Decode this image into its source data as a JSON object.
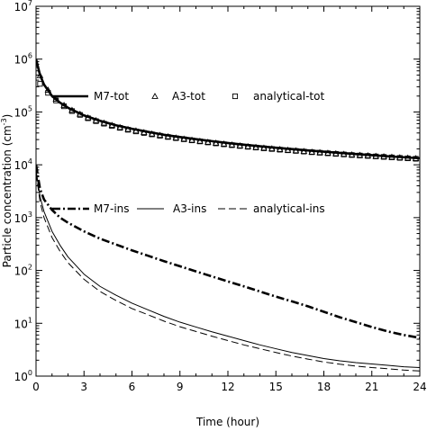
{
  "chart_data": {
    "type": "line",
    "title": "",
    "xlabel": "Time (hour)",
    "ylabel": "Particle concentration (cm",
    "ylabel_sup": "-3",
    "ylabel_tail": ")",
    "xlim": [
      0,
      24
    ],
    "ylim": [
      1,
      10000000
    ],
    "yscale": "log",
    "grid": false,
    "legend_placement": "inside plot, two rows",
    "x_ticks": [
      {
        "value": 0,
        "label": "0"
      },
      {
        "value": 3,
        "label": "3"
      },
      {
        "value": 6,
        "label": "6"
      },
      {
        "value": 9,
        "label": "9"
      },
      {
        "value": 12,
        "label": "12"
      },
      {
        "value": 15,
        "label": "15"
      },
      {
        "value": 18,
        "label": "18"
      },
      {
        "value": 21,
        "label": "21"
      },
      {
        "value": 24,
        "label": "24"
      }
    ],
    "y_ticks": [
      {
        "value": 1,
        "label": "10",
        "exp": "0"
      },
      {
        "value": 10,
        "label": "10",
        "exp": "1"
      },
      {
        "value": 100,
        "label": "10",
        "exp": "2"
      },
      {
        "value": 1000,
        "label": "10",
        "exp": "3"
      },
      {
        "value": 10000,
        "label": "10",
        "exp": "4"
      },
      {
        "value": 100000,
        "label": "10",
        "exp": "5"
      },
      {
        "value": 1000000,
        "label": "10",
        "exp": "6"
      },
      {
        "value": 10000000,
        "label": "10",
        "exp": "7"
      }
    ],
    "series": [
      {
        "name": "M7-tot",
        "style": "thick-solid",
        "color": "#000000",
        "x": [
          0,
          0.25,
          0.5,
          1,
          1.5,
          2,
          3,
          4,
          5,
          6,
          7,
          8,
          9,
          10,
          11,
          12,
          13,
          14,
          15,
          16,
          17,
          18,
          19,
          20,
          21,
          22,
          23,
          24
        ],
        "y": [
          1000000,
          500000,
          330000,
          200000,
          150000,
          120000,
          86000,
          68000,
          56000,
          48000,
          42000,
          37000,
          33500,
          30500,
          28000,
          25800,
          24000,
          22400,
          21000,
          19800,
          18700,
          17700,
          16800,
          16000,
          15200,
          14500,
          13900,
          13300
        ]
      },
      {
        "name": "A3-tot",
        "style": "triangle-markers",
        "color": "#000000",
        "x": [
          0.25,
          0.75,
          1.25,
          1.75,
          2.25,
          2.75,
          3.25,
          3.75,
          4.25,
          4.75,
          5.25,
          5.75,
          6.25,
          6.75,
          7.25,
          7.75,
          8.25,
          8.75,
          9.25,
          9.75,
          10.25,
          10.75,
          11.25,
          11.75,
          12.25,
          12.75,
          13.25,
          13.75,
          14.25,
          14.75,
          15.25,
          15.75,
          16.25,
          16.75,
          17.25,
          17.75,
          18.25,
          18.75,
          19.25,
          19.75,
          20.25,
          20.75,
          21.25,
          21.75,
          22.25,
          22.75,
          23.25,
          23.75
        ],
        "y": [
          490000,
          260000,
          176000,
          134000,
          108000,
          91000,
          78000,
          69000,
          62000,
          56000,
          51000,
          47000,
          44000,
          41000,
          38500,
          36200,
          34200,
          32400,
          30800,
          29400,
          28100,
          26900,
          25800,
          24800,
          23900,
          23000,
          22200,
          21500,
          20800,
          20200,
          19600,
          19000,
          18500,
          18000,
          17500,
          17100,
          16700,
          16300,
          15900,
          15500,
          15200,
          14900,
          14600,
          14300,
          14000,
          13700,
          13450,
          13200
        ]
      },
      {
        "name": "analytical-tot",
        "style": "square-markers",
        "color": "#000000",
        "x": [
          0.25,
          0.75,
          1.25,
          1.75,
          2.25,
          2.75,
          3.25,
          3.75,
          4.25,
          4.75,
          5.25,
          5.75,
          6.25,
          6.75,
          7.25,
          7.75,
          8.25,
          8.75,
          9.25,
          9.75,
          10.25,
          10.75,
          11.25,
          11.75,
          12.25,
          12.75,
          13.25,
          13.75,
          14.25,
          14.75,
          15.25,
          15.75,
          16.25,
          16.75,
          17.25,
          17.75,
          18.25,
          18.75,
          19.25,
          19.75,
          20.25,
          20.75,
          21.25,
          21.75,
          22.25,
          22.75,
          23.25,
          23.75
        ],
        "y": [
          340000,
          230000,
          165000,
          128000,
          104000,
          88000,
          76000,
          67000,
          60000,
          54500,
          50000,
          46000,
          42800,
          40000,
          37600,
          35500,
          33600,
          31900,
          30400,
          29000,
          27700,
          26500,
          25400,
          24400,
          23500,
          22700,
          21900,
          21200,
          20500,
          19900,
          19300,
          18800,
          18300,
          17800,
          17300,
          16900,
          16500,
          16100,
          15700,
          15300,
          15000,
          14700,
          14400,
          14100,
          13800,
          13500,
          13250,
          13000
        ]
      },
      {
        "name": "M7-ins",
        "style": "thick-dashdot",
        "color": "#000000",
        "x": [
          0,
          0.25,
          0.5,
          1,
          1.5,
          2,
          3,
          4,
          5,
          6,
          7,
          8,
          9,
          10,
          11,
          12,
          13,
          14,
          15,
          16,
          17,
          18,
          19,
          20,
          21,
          22,
          23,
          24
        ],
        "y": [
          10000,
          3500,
          2200,
          1400,
          1000,
          800,
          550,
          400,
          310,
          240,
          190,
          150,
          120,
          96,
          77,
          62,
          50,
          40,
          32,
          26,
          21,
          16.5,
          13,
          10.5,
          8.5,
          7,
          6,
          5.3
        ]
      },
      {
        "name": "A3-ins",
        "style": "thin-solid",
        "color": "#000000",
        "x": [
          0,
          0.25,
          0.5,
          1,
          1.5,
          2,
          3,
          4,
          5,
          6,
          7,
          8,
          9,
          10,
          11,
          12,
          13,
          14,
          15,
          16,
          17,
          18,
          19,
          20,
          21,
          22,
          23,
          24
        ],
        "y": [
          8000,
          2500,
          1300,
          550,
          300,
          180,
          85,
          50,
          34,
          24,
          18,
          13.5,
          10.5,
          8.5,
          6.9,
          5.7,
          4.7,
          3.9,
          3.3,
          2.8,
          2.45,
          2.15,
          1.95,
          1.8,
          1.7,
          1.6,
          1.5,
          1.45
        ]
      },
      {
        "name": "analytical-ins",
        "style": "thin-dashed",
        "color": "#000000",
        "x": [
          0,
          0.25,
          0.5,
          1,
          1.5,
          2,
          3,
          4,
          5,
          6,
          7,
          8,
          9,
          10,
          11,
          12,
          13,
          14,
          15,
          16,
          17,
          18,
          19,
          20,
          21,
          22,
          23,
          24
        ],
        "y": [
          7000,
          2000,
          1000,
          420,
          230,
          140,
          68,
          40,
          27,
          19,
          14.5,
          11,
          8.6,
          7,
          5.7,
          4.7,
          3.9,
          3.3,
          2.8,
          2.4,
          2.1,
          1.85,
          1.68,
          1.55,
          1.45,
          1.38,
          1.3,
          1.25
        ]
      }
    ],
    "legend": [
      {
        "label": "M7-tot",
        "style": "thick-solid"
      },
      {
        "label": "A3-tot",
        "style": "triangle-markers"
      },
      {
        "label": "analytical-tot",
        "style": "square-markers"
      },
      {
        "label": "M7-ins",
        "style": "thick-dashdot"
      },
      {
        "label": "A3-ins",
        "style": "thin-solid"
      },
      {
        "label": "analytical-ins",
        "style": "thin-dashed"
      }
    ]
  }
}
